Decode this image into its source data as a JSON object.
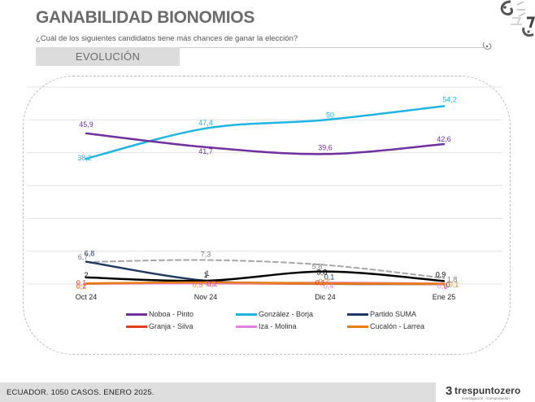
{
  "header": {
    "title": "GANABILIDAD BIONOMIOS",
    "question": "¿Cuál de los siguientes candidatos tiene más chances de ganar la elección?",
    "section_label": "EVOLUCIÓN"
  },
  "footer": {
    "caption": "ECUADOR. 1050 CASOS. ENERO 2025.",
    "brand_mark": "3",
    "brand_name": "trespuntozero",
    "brand_tagline": "Investigación · Comunicación"
  },
  "icons": {
    "corner_logo": "trespuntozero-corner-logo",
    "rule_end": "swirl-icon"
  },
  "chart_data": {
    "type": "line",
    "title": "GANABILIDAD BIONOMIOS",
    "subtitle": "¿Cuál de los siguientes candidatos tiene más chances de ganar la elección?",
    "xlabel": "",
    "ylabel": "",
    "categories": [
      "Oct 24",
      "Nov 24",
      "Dic 24",
      "Ene 25"
    ],
    "ylim": [
      0,
      60
    ],
    "grid": true,
    "y_axis_labels_visible": false,
    "legend_position": "bottom",
    "smoothed": true,
    "series": [
      {
        "name": "Noboa - Pinto",
        "color": "#7030a0",
        "values": [
          45.9,
          41.7,
          39.6,
          42.6
        ]
      },
      {
        "name": "González - Borja",
        "color": "#1fb4e2",
        "values": [
          38.2,
          47.4,
          50,
          54.2
        ]
      },
      {
        "name": "Partido SUMA",
        "color": "#1f3864",
        "values": [
          6.8,
          1,
          0.1,
          0
        ]
      },
      {
        "name": "Granja - Silva",
        "color": "#e2401c",
        "values": [
          0.1,
          0.2,
          0.1,
          0
        ]
      },
      {
        "name": "Iza - Molina",
        "color": "#e27fdc",
        "values": [
          0.2,
          0.2,
          0.4,
          0.1
        ]
      },
      {
        "name": "Cucalón - Larrea",
        "color": "#e67e14",
        "values": [
          0.2,
          0.5,
          0.2,
          0.1
        ]
      },
      {
        "name": null,
        "color": "#000000",
        "values": [
          2,
          1,
          3.8,
          0.9
        ]
      },
      {
        "name": null,
        "color": "#a6a6a6",
        "dashed": true,
        "values": [
          6.7,
          7.3,
          5.8,
          1.8
        ]
      }
    ]
  }
}
